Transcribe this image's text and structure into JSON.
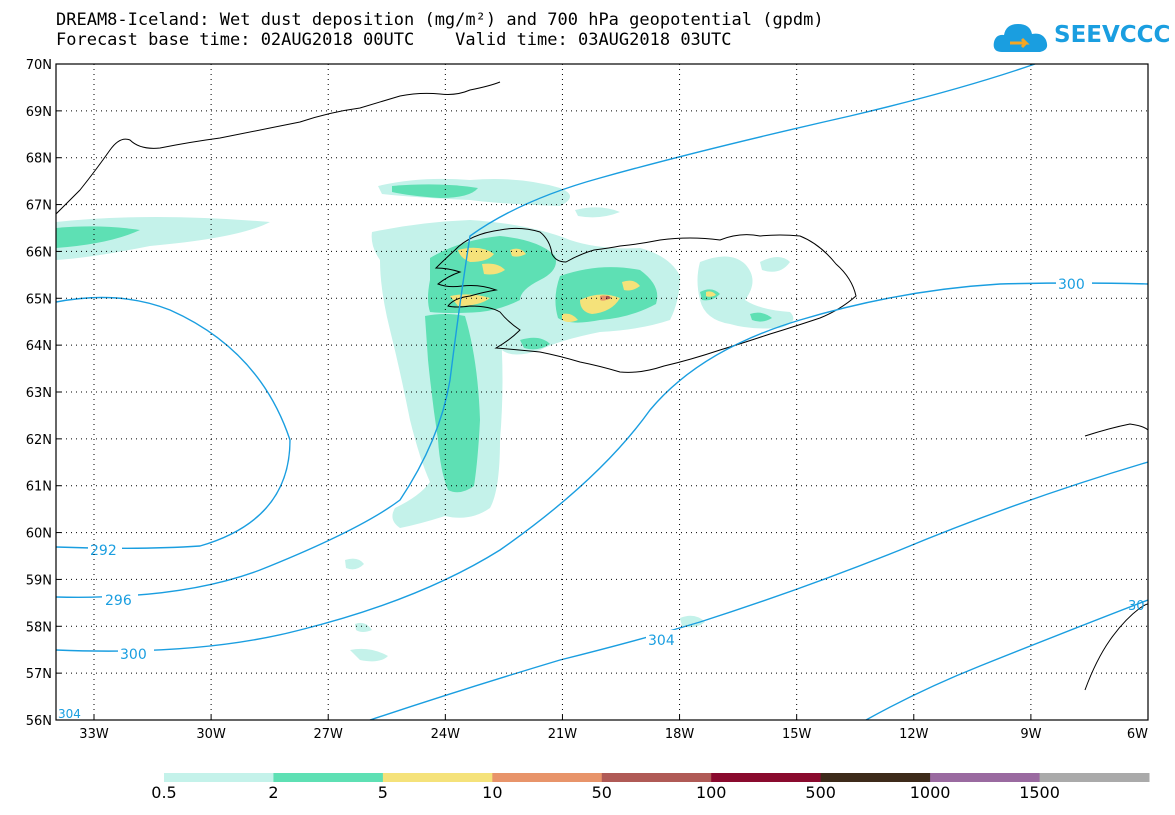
{
  "title": {
    "line1": "DREAM8-Iceland: Wet dust deposition (mg/m²) and 700 hPa geopotential (gpdm)",
    "line2": "Forecast base time: 02AUG2018 00UTC    Valid time: 03AUG2018 03UTC"
  },
  "logo": {
    "text": "SEEVCCC",
    "icon": "cloud-icon",
    "color": "#1a9ee0"
  },
  "lat_labels": [
    "70N",
    "69N",
    "68N",
    "67N",
    "66N",
    "65N",
    "64N",
    "63N",
    "62N",
    "61N",
    "60N",
    "59N",
    "58N",
    "57N",
    "56N"
  ],
  "lon_labels": [
    "33W",
    "30W",
    "27W",
    "24W",
    "21W",
    "18W",
    "15W",
    "12W",
    "9W",
    "6W"
  ],
  "contours": {
    "color": "#1a9ee0",
    "labels": [
      "292",
      "296",
      "300",
      "300",
      "304",
      "304",
      "30"
    ]
  },
  "legend": {
    "colors": [
      "#c4f2ea",
      "#5ee0b4",
      "#f5e27a",
      "#e8946a",
      "#b05a56",
      "#8a0a2e",
      "#3d2a1a",
      "#9a6aa0",
      "#aaaaaa"
    ],
    "labels": [
      "0.5",
      "2",
      "5",
      "10",
      "50",
      "100",
      "500",
      "1000",
      "1500"
    ]
  }
}
